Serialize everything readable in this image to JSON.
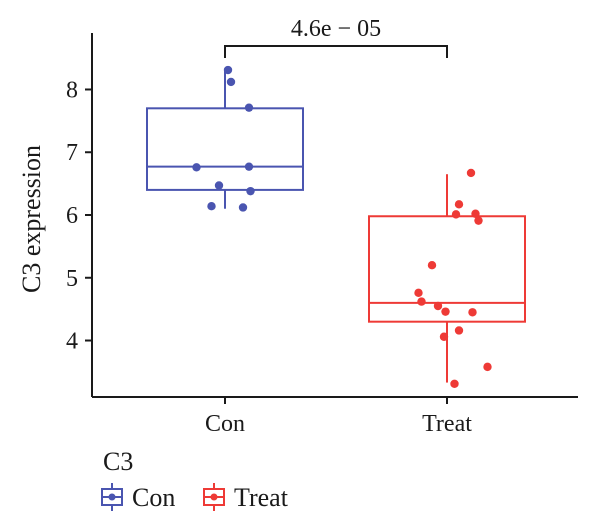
{
  "chart_data": {
    "type": "box",
    "title": "",
    "xlabel": "",
    "ylabel": "C3 expression",
    "ylim": [
      3.1,
      8.9
    ],
    "yticks": [
      4,
      5,
      6,
      7,
      8
    ],
    "categories": [
      "Con",
      "Treat"
    ],
    "series": [
      {
        "name": "Con",
        "color": "#4a55b0",
        "box": {
          "min": 6.1,
          "q1": 6.4,
          "median": 6.77,
          "q3": 7.7,
          "max": 8.3
        },
        "points": [
          {
            "jitter": 0.02,
            "y": 8.31
          },
          {
            "jitter": 0.04,
            "y": 8.12
          },
          {
            "jitter": 0.16,
            "y": 7.71
          },
          {
            "jitter": -0.19,
            "y": 6.76
          },
          {
            "jitter": 0.16,
            "y": 6.77
          },
          {
            "jitter": -0.04,
            "y": 6.47
          },
          {
            "jitter": 0.17,
            "y": 6.38
          },
          {
            "jitter": -0.09,
            "y": 6.14
          },
          {
            "jitter": 0.12,
            "y": 6.12
          }
        ]
      },
      {
        "name": "Treat",
        "color": "#ee3a36",
        "box": {
          "min": 3.33,
          "q1": 4.3,
          "median": 4.6,
          "q3": 5.98,
          "max": 6.65
        },
        "points": [
          {
            "jitter": 0.16,
            "y": 6.67
          },
          {
            "jitter": 0.08,
            "y": 6.17
          },
          {
            "jitter": 0.06,
            "y": 6.01
          },
          {
            "jitter": 0.19,
            "y": 6.02
          },
          {
            "jitter": 0.21,
            "y": 5.91
          },
          {
            "jitter": -0.1,
            "y": 5.2
          },
          {
            "jitter": -0.19,
            "y": 4.76
          },
          {
            "jitter": -0.17,
            "y": 4.62
          },
          {
            "jitter": -0.06,
            "y": 4.55
          },
          {
            "jitter": -0.01,
            "y": 4.46
          },
          {
            "jitter": 0.17,
            "y": 4.45
          },
          {
            "jitter": 0.08,
            "y": 4.16
          },
          {
            "jitter": -0.02,
            "y": 4.06
          },
          {
            "jitter": 0.27,
            "y": 3.58
          },
          {
            "jitter": 0.05,
            "y": 3.31
          }
        ]
      }
    ],
    "annotation": {
      "text": "4.6e − 05"
    },
    "legend": {
      "title": "C3",
      "position": "bottom-left"
    }
  }
}
